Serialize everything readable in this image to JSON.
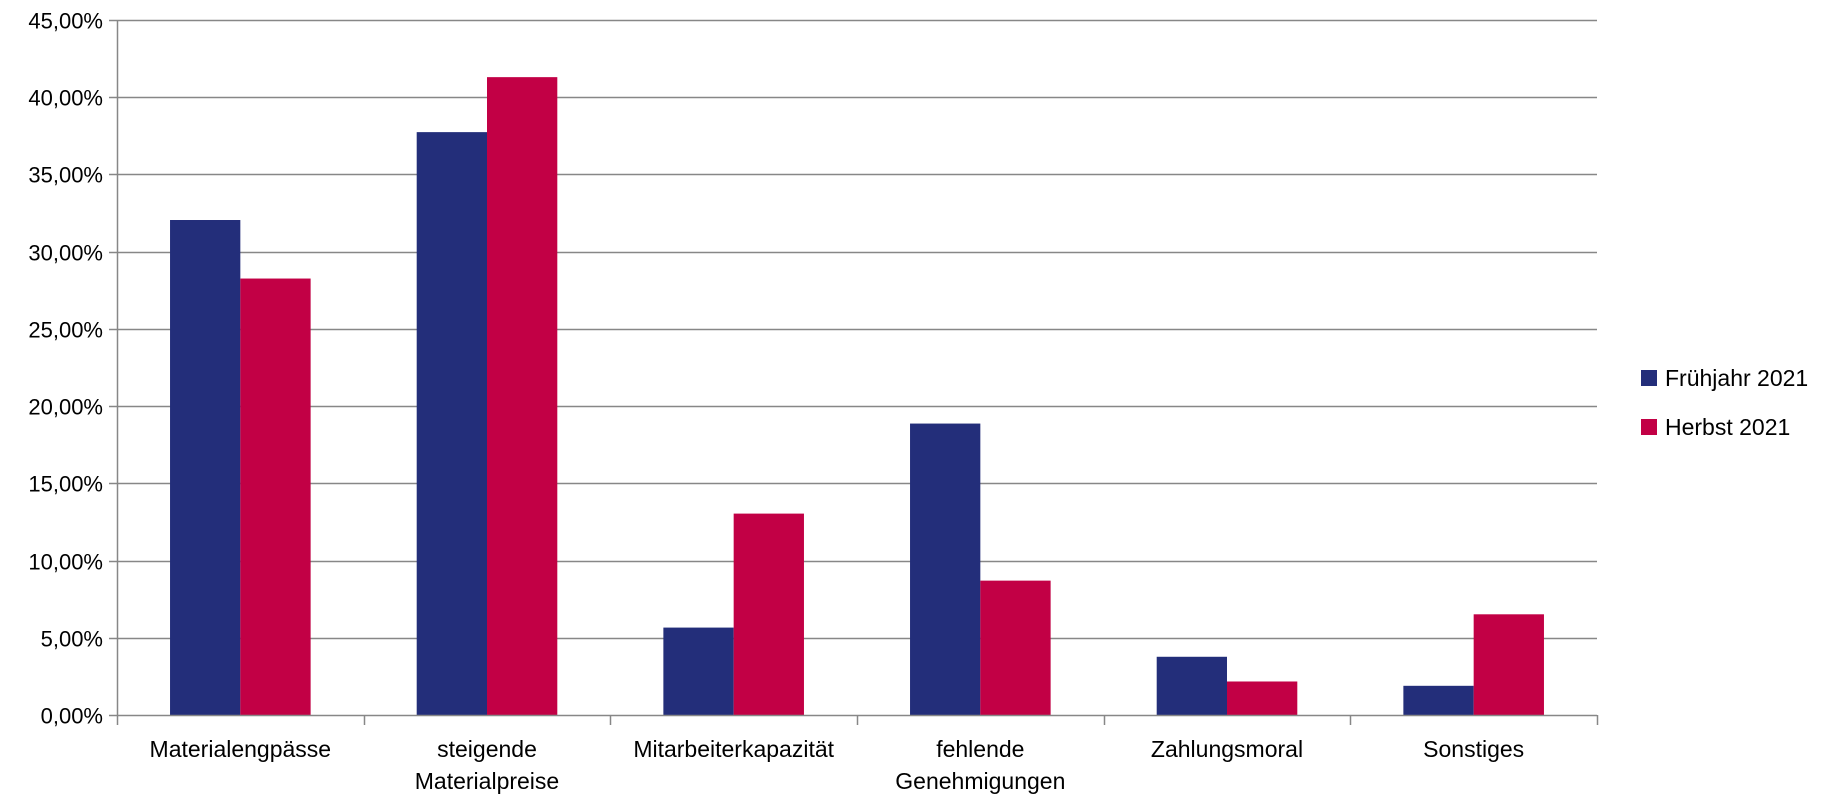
{
  "chart_data": {
    "type": "bar",
    "title": "",
    "xlabel": "",
    "ylabel": "",
    "categories": [
      [
        "Materialengpässe"
      ],
      [
        "steigende",
        "Materialpreise"
      ],
      [
        "Mitarbeiterkapazität"
      ],
      [
        "fehlende",
        "Genehmigungen"
      ],
      [
        "Zahlungsmoral"
      ],
      [
        "Sonstiges"
      ]
    ],
    "series": [
      {
        "name": "Frühjahr 2021",
        "color": "#232E7A",
        "values": [
          0.3205,
          0.3774,
          0.0566,
          0.1887,
          0.0377,
          0.0189
        ]
      },
      {
        "name": "Herbst 2021",
        "color": "#C20045",
        "values": [
          0.2826,
          0.413,
          0.1304,
          0.087,
          0.0217,
          0.0652
        ]
      }
    ],
    "ylim": [
      0,
      0.45
    ],
    "yticks": [
      0,
      0.05,
      0.1,
      0.15,
      0.2,
      0.25,
      0.3,
      0.35,
      0.4,
      0.45
    ],
    "ytick_labels": [
      "0,00%",
      "5,00%",
      "10,00%",
      "15,00%",
      "20,00%",
      "25,00%",
      "30,00%",
      "35,00%",
      "40,00%",
      "45,00%"
    ],
    "grid": true,
    "legend": "right",
    "gridline_color": "#878787",
    "axis_color": "#878787"
  }
}
